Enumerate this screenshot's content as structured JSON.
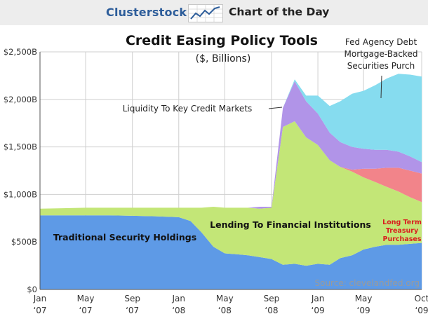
{
  "header": {
    "brand": "Clusterstock",
    "tagline": "Chart of the Day",
    "logo_icon": "trend-chart-icon"
  },
  "colors": {
    "grid": "#cfcfcf",
    "plot_background": "#ffffff"
  },
  "chart_data": {
    "type": "area",
    "stacked": true,
    "title": "Credit Easing Policy Tools",
    "subtitle": "($, Billions)",
    "source": "Source: clevelandfed.org",
    "xlabel": "",
    "ylabel": "",
    "ylim": [
      0,
      2500
    ],
    "y_ticks": [
      {
        "value": 0,
        "label": "$0"
      },
      {
        "value": 500,
        "label": "$500B"
      },
      {
        "value": 1000,
        "label": "$1,000B"
      },
      {
        "value": 1500,
        "label": "$1,500B"
      },
      {
        "value": 2000,
        "label": "$2,000B"
      },
      {
        "value": 2500,
        "label": "$2,500B"
      }
    ],
    "x_ticks": [
      {
        "date": "2007-01",
        "line1": "Jan",
        "line2": "‘07"
      },
      {
        "date": "2007-05",
        "line1": "May",
        "line2": "‘07"
      },
      {
        "date": "2007-09",
        "line1": "Sep",
        "line2": "‘07"
      },
      {
        "date": "2008-01",
        "line1": "Jan",
        "line2": "‘08"
      },
      {
        "date": "2008-05",
        "line1": "May",
        "line2": "‘08"
      },
      {
        "date": "2008-09",
        "line1": "Sep",
        "line2": "‘08"
      },
      {
        "date": "2009-01",
        "line1": "Jan",
        "line2": "‘09"
      },
      {
        "date": "2009-05",
        "line1": "May",
        "line2": "‘09"
      },
      {
        "date": "2009-10",
        "line1": "Oct",
        "line2": "‘09"
      }
    ],
    "grid": true,
    "x": [
      "2007-01",
      "2007-03",
      "2007-05",
      "2007-07",
      "2007-09",
      "2007-11",
      "2008-01",
      "2008-02",
      "2008-03",
      "2008-04",
      "2008-05",
      "2008-06",
      "2008-07",
      "2008-08",
      "2008-09",
      "2008-10",
      "2008-11",
      "2008-12",
      "2009-01",
      "2009-02",
      "2009-03",
      "2009-04",
      "2009-05",
      "2009-06",
      "2009-07",
      "2009-08",
      "2009-09",
      "2009-10"
    ],
    "series": [
      {
        "name": "Traditional Security Holdings",
        "color": "#5e9ae6",
        "values": [
          780,
          780,
          780,
          780,
          775,
          770,
          760,
          720,
          600,
          450,
          380,
          370,
          360,
          340,
          320,
          260,
          270,
          250,
          270,
          260,
          330,
          360,
          420,
          450,
          470,
          470,
          480,
          490
        ]
      },
      {
        "name": "Lending To Financial Institutions",
        "color": "#c3e677",
        "values": [
          70,
          75,
          80,
          80,
          85,
          90,
          100,
          140,
          260,
          420,
          480,
          490,
          500,
          510,
          540,
          1450,
          1500,
          1350,
          1250,
          1100,
          960,
          880,
          760,
          680,
          610,
          560,
          490,
          430
        ]
      },
      {
        "name": "Long Term Treasury Purchases",
        "color": "#f2848a",
        "values": [
          0,
          0,
          0,
          0,
          0,
          0,
          0,
          0,
          0,
          0,
          0,
          0,
          0,
          0,
          0,
          0,
          0,
          0,
          0,
          0,
          0,
          20,
          90,
          140,
          200,
          250,
          280,
          300
        ]
      },
      {
        "name": "Liquidity To Key Credit Markets",
        "color": "#b194e8",
        "values": [
          0,
          0,
          0,
          0,
          0,
          0,
          0,
          0,
          0,
          0,
          0,
          0,
          0,
          20,
          10,
          200,
          420,
          380,
          330,
          290,
          260,
          240,
          210,
          200,
          190,
          170,
          150,
          120
        ]
      },
      {
        "name": "Fed Agency Debt Mortgage-Backed Securities Purch",
        "color": "#86dcef",
        "values": [
          0,
          0,
          0,
          0,
          0,
          0,
          0,
          0,
          0,
          0,
          0,
          0,
          0,
          0,
          0,
          0,
          20,
          60,
          190,
          280,
          430,
          560,
          610,
          680,
          750,
          820,
          860,
          900
        ]
      }
    ],
    "annotations": [
      {
        "name": "label-fed-agency",
        "lines": [
          "Fed Agency Debt",
          "Mortgage-Backed",
          "Securities Purch"
        ],
        "color": "#222"
      },
      {
        "name": "label-liquidity",
        "lines": [
          "Liquidity To Key Credit Markets"
        ],
        "color": "#222"
      },
      {
        "name": "label-lending",
        "lines": [
          "Lending To Financial Institutions"
        ],
        "color": "#111",
        "bold": true
      },
      {
        "name": "label-treasury",
        "lines": [
          "Long Term",
          "Treasury",
          "Purchases"
        ],
        "color": "#d91e1e",
        "bold": true
      },
      {
        "name": "label-traditional",
        "lines": [
          "Traditional Security Holdings"
        ],
        "color": "#111",
        "bold": true
      }
    ]
  }
}
